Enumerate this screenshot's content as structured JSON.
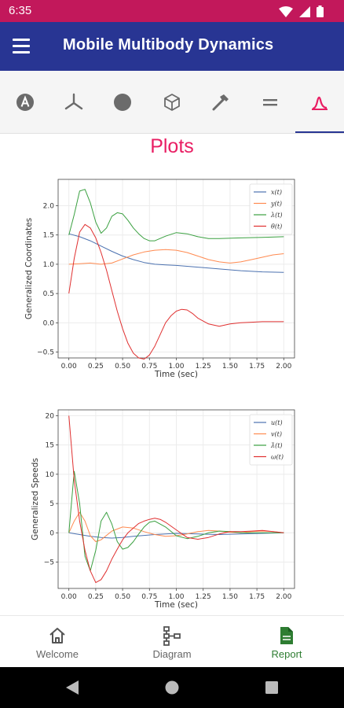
{
  "status_bar": {
    "time": "6:35",
    "icons": [
      "wifi-icon",
      "signal-icon",
      "battery-icon"
    ]
  },
  "app_bar": {
    "title": "Mobile Multibody Dynamics",
    "menu_icon": "hamburger-menu-icon"
  },
  "tabs": [
    {
      "icon": "letter-a-circle-icon",
      "active": false
    },
    {
      "icon": "axes-icon",
      "active": false
    },
    {
      "icon": "filled-circle-icon",
      "active": false
    },
    {
      "icon": "cube-icon",
      "active": false
    },
    {
      "icon": "hammer-icon",
      "active": false
    },
    {
      "icon": "equals-icon",
      "active": false
    },
    {
      "icon": "plot-curve-icon",
      "active": true
    }
  ],
  "page_title": "Plots",
  "colors": {
    "status_bar": "#c2185b",
    "app_bar": "#283593",
    "accent": "#e91e63",
    "active_nav": "#2e7d32",
    "series": [
      "#4c72b0",
      "#ff8a50",
      "#3aa040",
      "#e03030"
    ]
  },
  "chart_data": [
    {
      "type": "line",
      "xlabel": "Time (sec)",
      "ylabel": "Generalized Coordinates",
      "xlim": [
        -0.1,
        2.1
      ],
      "ylim": [
        -0.6,
        2.45
      ],
      "xticks": [
        "0.00",
        "0.25",
        "0.50",
        "0.75",
        "1.00",
        "1.25",
        "1.50",
        "1.75",
        "2.00"
      ],
      "yticks": [
        "−0.5",
        "0.0",
        "0.5",
        "1.0",
        "1.5",
        "2.0"
      ],
      "ytick_values": [
        -0.5,
        0.0,
        0.5,
        1.0,
        1.5,
        2.0
      ],
      "grid": true,
      "legend_position": "top-right",
      "series": [
        {
          "name": "x(t)",
          "x": [
            0,
            0.1,
            0.2,
            0.3,
            0.4,
            0.5,
            0.6,
            0.7,
            0.8,
            0.9,
            1.0,
            1.2,
            1.4,
            1.6,
            1.8,
            2.0
          ],
          "values": [
            1.52,
            1.47,
            1.4,
            1.31,
            1.22,
            1.14,
            1.08,
            1.03,
            1.0,
            0.99,
            0.98,
            0.95,
            0.92,
            0.89,
            0.87,
            0.86
          ]
        },
        {
          "name": "y(t)",
          "x": [
            0,
            0.1,
            0.2,
            0.3,
            0.4,
            0.5,
            0.6,
            0.7,
            0.8,
            0.9,
            1.0,
            1.1,
            1.2,
            1.3,
            1.4,
            1.5,
            1.6,
            1.7,
            1.8,
            1.9,
            2.0
          ],
          "values": [
            1.0,
            1.01,
            1.02,
            1.0,
            1.02,
            1.09,
            1.16,
            1.21,
            1.24,
            1.25,
            1.24,
            1.2,
            1.14,
            1.08,
            1.04,
            1.02,
            1.04,
            1.08,
            1.12,
            1.16,
            1.18
          ]
        },
        {
          "name": "λ(t)",
          "x": [
            0,
            0.05,
            0.1,
            0.15,
            0.2,
            0.25,
            0.3,
            0.35,
            0.4,
            0.45,
            0.5,
            0.55,
            0.6,
            0.65,
            0.7,
            0.75,
            0.8,
            0.9,
            1.0,
            1.1,
            1.2,
            1.3,
            1.4,
            1.6,
            1.8,
            2.0
          ],
          "values": [
            1.5,
            1.85,
            2.25,
            2.28,
            2.05,
            1.72,
            1.53,
            1.62,
            1.82,
            1.88,
            1.86,
            1.75,
            1.62,
            1.52,
            1.44,
            1.4,
            1.4,
            1.48,
            1.54,
            1.52,
            1.47,
            1.44,
            1.44,
            1.45,
            1.46,
            1.47
          ]
        },
        {
          "name": "θ(t)",
          "x": [
            0,
            0.05,
            0.1,
            0.15,
            0.2,
            0.25,
            0.3,
            0.35,
            0.4,
            0.45,
            0.5,
            0.55,
            0.6,
            0.65,
            0.7,
            0.75,
            0.8,
            0.85,
            0.9,
            0.95,
            1.0,
            1.05,
            1.1,
            1.15,
            1.2,
            1.3,
            1.4,
            1.5,
            1.6,
            1.7,
            1.8,
            1.9,
            2.0
          ],
          "values": [
            0.5,
            1.1,
            1.55,
            1.68,
            1.62,
            1.45,
            1.2,
            0.9,
            0.55,
            0.2,
            -0.1,
            -0.35,
            -0.52,
            -0.6,
            -0.62,
            -0.55,
            -0.4,
            -0.2,
            0.0,
            0.12,
            0.2,
            0.23,
            0.22,
            0.16,
            0.08,
            -0.02,
            -0.06,
            -0.02,
            0.0,
            0.01,
            0.02,
            0.02,
            0.02
          ]
        }
      ]
    },
    {
      "type": "line",
      "xlabel": "Time (sec)",
      "ylabel": "Generalized Speeds",
      "xlim": [
        -0.1,
        2.1
      ],
      "ylim": [
        -9.5,
        21
      ],
      "xticks": [
        "0.00",
        "0.25",
        "0.50",
        "0.75",
        "1.00",
        "1.25",
        "1.50",
        "1.75",
        "2.00"
      ],
      "yticks": [
        "−5",
        "0",
        "5",
        "10",
        "15",
        "20"
      ],
      "ytick_values": [
        -5,
        0,
        5,
        10,
        15,
        20
      ],
      "grid": true,
      "legend_position": "top-right",
      "series": [
        {
          "name": "u(t)",
          "x": [
            0,
            0.1,
            0.2,
            0.3,
            0.4,
            0.5,
            0.6,
            0.8,
            1.0,
            1.2,
            1.4,
            1.6,
            1.8,
            2.0
          ],
          "values": [
            0.0,
            -0.3,
            -0.6,
            -0.8,
            -0.9,
            -0.8,
            -0.6,
            -0.3,
            -0.1,
            -0.2,
            -0.3,
            -0.2,
            -0.1,
            0.0
          ]
        },
        {
          "name": "v(t)",
          "x": [
            0,
            0.05,
            0.1,
            0.15,
            0.2,
            0.25,
            0.3,
            0.4,
            0.5,
            0.6,
            0.7,
            0.8,
            0.9,
            1.0,
            1.1,
            1.2,
            1.3,
            1.4,
            1.5,
            1.6,
            1.7,
            1.8,
            1.9,
            2.0
          ],
          "values": [
            0.0,
            2.0,
            3.5,
            2.0,
            -0.5,
            -1.5,
            -1.2,
            0.3,
            1.0,
            0.8,
            0.2,
            -0.3,
            -0.6,
            -0.5,
            -0.2,
            0.2,
            0.4,
            0.3,
            0.1,
            0.0,
            0.2,
            0.3,
            0.2,
            0.0
          ]
        },
        {
          "name": "λ̇(t)",
          "x": [
            0,
            0.05,
            0.1,
            0.15,
            0.2,
            0.25,
            0.3,
            0.35,
            0.4,
            0.45,
            0.5,
            0.55,
            0.6,
            0.65,
            0.7,
            0.75,
            0.8,
            0.9,
            1.0,
            1.1,
            1.2,
            1.3,
            1.4,
            1.5,
            1.6,
            1.8,
            2.0
          ],
          "values": [
            0.0,
            10.5,
            5.0,
            -4.0,
            -6.5,
            -3.0,
            2.0,
            3.5,
            1.5,
            -1.5,
            -2.8,
            -2.5,
            -1.5,
            -0.2,
            1.0,
            1.8,
            2.0,
            1.0,
            -0.5,
            -1.0,
            -0.6,
            0.0,
            0.3,
            0.2,
            0.0,
            0.0,
            0.0
          ]
        },
        {
          "name": "ω(t)",
          "x": [
            0,
            0.05,
            0.1,
            0.15,
            0.2,
            0.25,
            0.3,
            0.35,
            0.4,
            0.45,
            0.5,
            0.55,
            0.6,
            0.65,
            0.7,
            0.75,
            0.8,
            0.85,
            0.9,
            1.0,
            1.1,
            1.2,
            1.3,
            1.4,
            1.5,
            1.6,
            1.7,
            1.8,
            1.9,
            2.0
          ],
          "values": [
            20.0,
            9.0,
            2.0,
            -3.0,
            -6.5,
            -8.5,
            -8.0,
            -6.5,
            -4.5,
            -2.8,
            -1.2,
            0.0,
            0.8,
            1.6,
            2.0,
            2.3,
            2.5,
            2.3,
            1.8,
            0.5,
            -0.8,
            -1.1,
            -0.8,
            -0.2,
            0.2,
            0.2,
            0.3,
            0.4,
            0.2,
            0.0
          ]
        }
      ]
    }
  ],
  "bottom_nav": [
    {
      "label": "Welcome",
      "icon": "home-icon",
      "active": false
    },
    {
      "label": "Diagram",
      "icon": "diagram-icon",
      "active": false
    },
    {
      "label": "Report",
      "icon": "document-icon",
      "active": true
    }
  ],
  "system_nav": [
    "back-icon",
    "home-circle-icon",
    "recents-square-icon"
  ]
}
